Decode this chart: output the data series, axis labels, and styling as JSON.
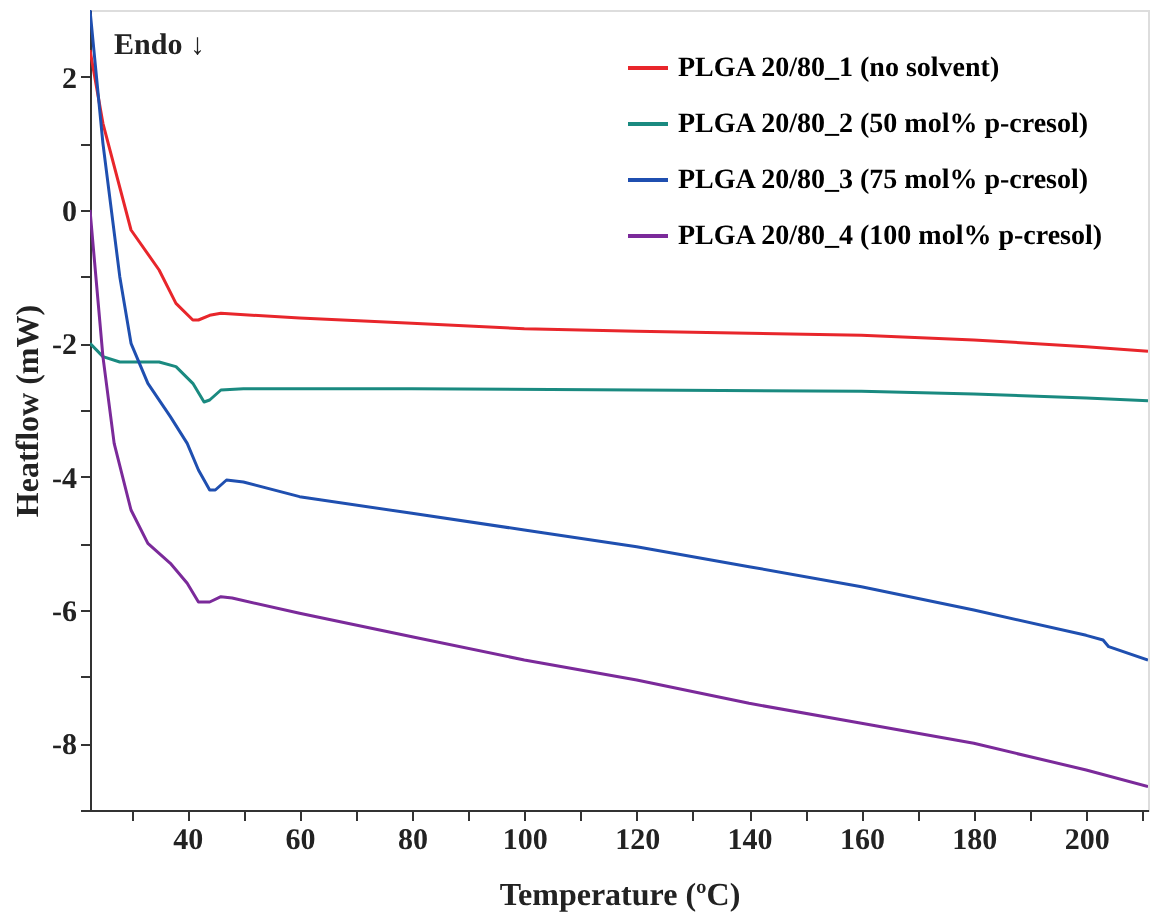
{
  "chart_data": {
    "type": "line",
    "xlabel": "Temperature (ºC)",
    "ylabel": "Heatflow (mW)",
    "xlim": [
      22.7,
      211
    ],
    "ylim": [
      -9,
      3
    ],
    "xticks": [
      {
        "value": 30,
        "label": null
      },
      40,
      {
        "value": 50,
        "label": null
      },
      60,
      {
        "value": 70,
        "label": null
      },
      80,
      {
        "value": 90,
        "label": null
      },
      100,
      {
        "value": 110,
        "label": null
      },
      120,
      {
        "value": 130,
        "label": null
      },
      140,
      {
        "value": 150,
        "label": null
      },
      160,
      {
        "value": 170,
        "label": null
      },
      180,
      {
        "value": 190,
        "label": null
      },
      200,
      {
        "value": 210,
        "label": null
      }
    ],
    "yticks": [
      {
        "value": -9,
        "label": null
      },
      -8,
      {
        "value": -7,
        "label": null
      },
      -6,
      {
        "value": -5,
        "label": null
      },
      -4,
      {
        "value": -3,
        "label": null
      },
      -2,
      {
        "value": -1,
        "label": null
      },
      0,
      {
        "value": 1,
        "label": null
      },
      2
    ],
    "grid": false,
    "legend": "top right",
    "marker": "none",
    "line_style": "solid",
    "annotations": [
      "Endo ↓"
    ],
    "series": [
      {
        "name": "PLGA 20/80_1 (no solvent)",
        "color": "#e8262b",
        "x": [
          22.7,
          25,
          30,
          35,
          38,
          41,
          42,
          44,
          46,
          60,
          80,
          100,
          120,
          140,
          160,
          180,
          200,
          211
        ],
        "values": [
          2.4,
          1.3,
          -0.3,
          -0.9,
          -1.4,
          -1.65,
          -1.65,
          -1.58,
          -1.55,
          -1.62,
          -1.7,
          -1.78,
          -1.82,
          -1.85,
          -1.88,
          -1.95,
          -2.05,
          -2.12
        ]
      },
      {
        "name": "PLGA 20/80_2  (50 mol% p-cresol)",
        "color": "#1a8a80",
        "x": [
          22.7,
          25,
          28,
          35,
          38,
          41,
          43,
          44,
          46,
          50,
          80,
          120,
          160,
          180,
          200,
          211
        ],
        "values": [
          -2.0,
          -2.2,
          -2.28,
          -2.28,
          -2.35,
          -2.6,
          -2.88,
          -2.85,
          -2.7,
          -2.68,
          -2.68,
          -2.7,
          -2.72,
          -2.76,
          -2.82,
          -2.86
        ]
      },
      {
        "name": "PLGA 20/80_3  (75 mol% p-cresol)",
        "color": "#1f4fb0",
        "x": [
          22.7,
          25,
          28,
          30,
          33,
          37,
          40,
          42,
          44,
          45,
          47,
          50,
          60,
          80,
          100,
          120,
          140,
          160,
          180,
          200,
          203,
          204,
          211
        ],
        "values": [
          3.0,
          1.0,
          -1.0,
          -2.0,
          -2.6,
          -3.1,
          -3.5,
          -3.9,
          -4.2,
          -4.2,
          -4.05,
          -4.08,
          -4.3,
          -4.55,
          -4.8,
          -5.05,
          -5.35,
          -5.65,
          -6.0,
          -6.38,
          -6.45,
          -6.55,
          -6.75
        ]
      },
      {
        "name": "PLGA 20/80_4  (100 mol% p-cresol)",
        "color": "#7b2a9a",
        "x": [
          22.7,
          25,
          27,
          30,
          33,
          37,
          40,
          42,
          44,
          46,
          48,
          60,
          80,
          100,
          120,
          140,
          160,
          180,
          200,
          211
        ],
        "values": [
          0.0,
          -2.2,
          -3.5,
          -4.5,
          -5.0,
          -5.3,
          -5.6,
          -5.88,
          -5.88,
          -5.8,
          -5.82,
          -6.05,
          -6.4,
          -6.75,
          -7.05,
          -7.4,
          -7.7,
          -8.0,
          -8.4,
          -8.65
        ]
      }
    ]
  }
}
